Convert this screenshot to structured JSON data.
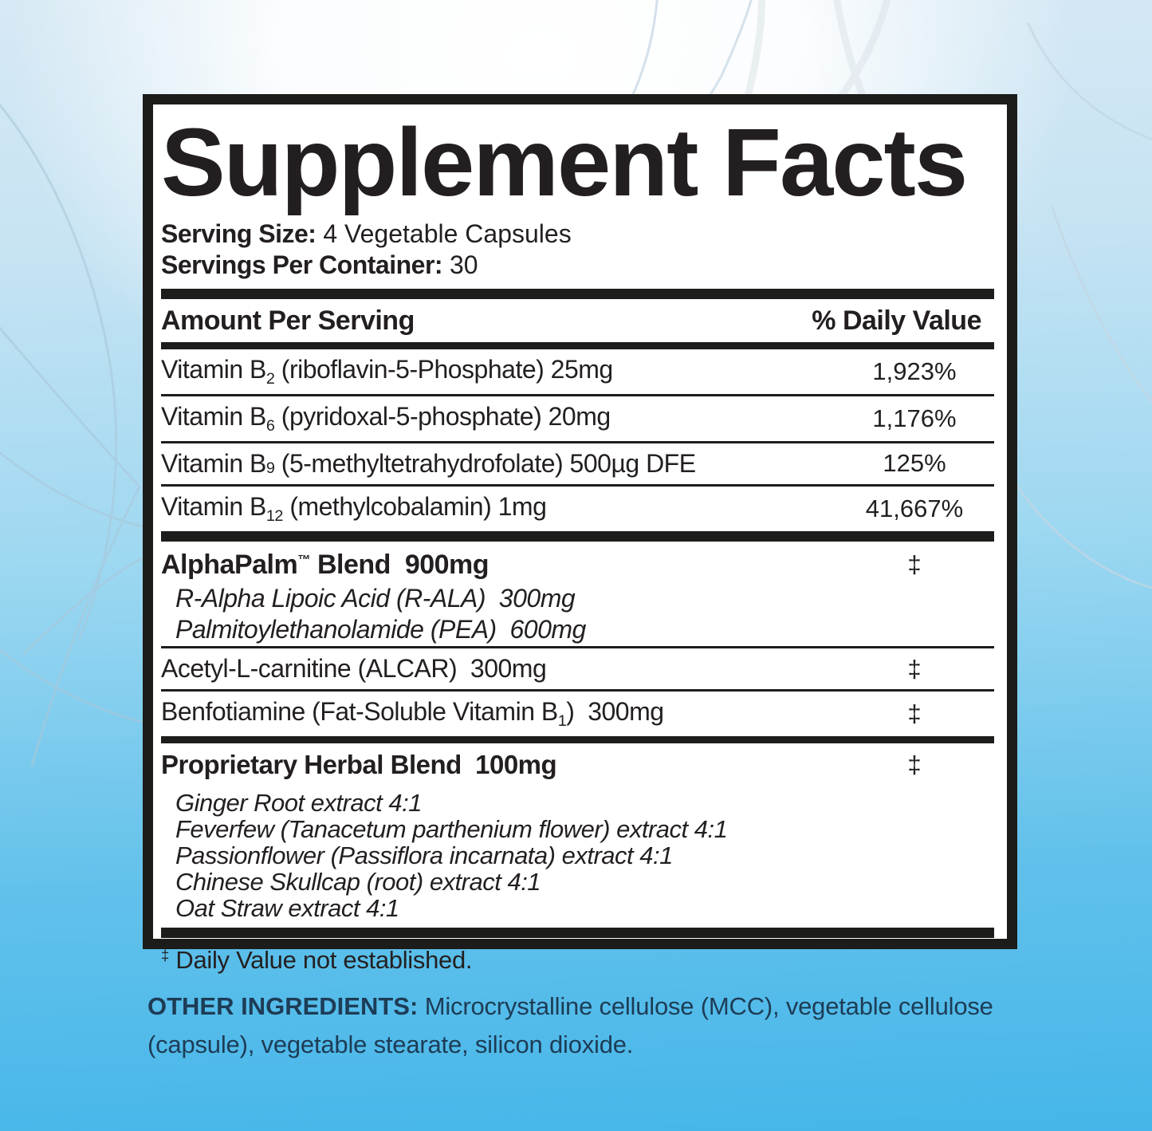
{
  "colors": {
    "background_top": "#ffffff",
    "background_bottom": "#45b6e9",
    "ink": "#231f20",
    "other_ingredients_ink": "#1d3c55"
  },
  "supplement_facts": {
    "title": "Supplement Facts",
    "serving_size": {
      "label": "Serving Size:",
      "value": " 4 Vegetable Capsules"
    },
    "servings_per_container": {
      "label": "Servings Per Container:",
      "value": " 30"
    },
    "columns": {
      "amount": "Amount Per Serving",
      "daily_value": "% Daily Value"
    },
    "rows": [
      {
        "style": "nutrient",
        "parts": [
          {
            "text": "Vitamin B"
          },
          {
            "sub": "2"
          },
          {
            "text": " (riboflavin-5-Phosphate) 25mg"
          }
        ],
        "dv": "1,923%",
        "sep_after": "thin"
      },
      {
        "style": "nutrient",
        "parts": [
          {
            "text": "Vitamin B"
          },
          {
            "sub": "6"
          },
          {
            "text": " (pyridoxal-5-phosphate) 20mg"
          }
        ],
        "dv": "1,176%",
        "sep_after": "thin"
      },
      {
        "style": "nutrient",
        "parts": [
          {
            "text": "Vitamin B"
          },
          {
            "sub": "9",
            "baseline": true
          },
          {
            "text": " (5-methyltetrahydrofolate) 500µg DFE"
          }
        ],
        "dv": "125%",
        "sep_after": "thin"
      },
      {
        "style": "nutrient",
        "parts": [
          {
            "text": "Vitamin B"
          },
          {
            "sub": "12"
          },
          {
            "text": " (methylcobalamin) 1mg"
          }
        ],
        "dv": "41,667%",
        "sep_after": "heavy"
      },
      {
        "style": "blend",
        "parts": [
          {
            "text": "AlphaPalm"
          },
          {
            "sup": "™"
          },
          {
            "text": " Blend  900mg"
          }
        ],
        "dv": "‡",
        "sep_after": "none"
      },
      {
        "style": "blend-item",
        "parts": [
          {
            "text": "R-Alpha Lipoic Acid (R-ALA)  300mg"
          }
        ],
        "dv": null,
        "sep_after": "none"
      },
      {
        "style": "blend-item",
        "parts": [
          {
            "text": "Palmitoylethanolamide (PEA)  600mg"
          }
        ],
        "dv": null,
        "sep_after": "thin"
      },
      {
        "style": "nutrient",
        "parts": [
          {
            "text": "Acetyl-L-carnitine (ALCAR)  300mg"
          }
        ],
        "dv": "‡",
        "sep_after": "thin"
      },
      {
        "style": "nutrient",
        "parts": [
          {
            "text": "Benfotiamine (Fat-Soluble Vitamin B"
          },
          {
            "sub": "1"
          },
          {
            "text": ")  300mg"
          }
        ],
        "dv": "‡",
        "sep_after": "medium"
      },
      {
        "style": "herb-header",
        "parts": [
          {
            "text": "Proprietary Herbal Blend  100mg"
          }
        ],
        "dv": "‡",
        "sep_after": "gap"
      },
      {
        "style": "herb-item",
        "parts": [
          {
            "text": "Ginger Root extract 4:1"
          }
        ],
        "dv": null,
        "sep_after": "none"
      },
      {
        "style": "herb-item",
        "parts": [
          {
            "text": "Feverfew (Tanacetum parthenium flower) extract 4:1"
          }
        ],
        "dv": null,
        "sep_after": "none"
      },
      {
        "style": "herb-item",
        "parts": [
          {
            "text": "Passionflower (Passiflora incarnata) extract 4:1"
          }
        ],
        "dv": null,
        "sep_after": "none"
      },
      {
        "style": "herb-item",
        "parts": [
          {
            "text": "Chinese Skullcap (root) extract 4:1"
          }
        ],
        "dv": null,
        "sep_after": "none"
      },
      {
        "style": "herb-item",
        "parts": [
          {
            "text": "Oat Straw extract 4:1"
          }
        ],
        "dv": null,
        "sep_after": "footgap"
      }
    ],
    "footnote": {
      "symbol": "‡",
      "text": " Daily Value not established."
    }
  },
  "other_ingredients": {
    "label": "OTHER INGREDIENTS:",
    "text": " Microcrystalline cellulose (MCC), vegetable cellulose (capsule), vegetable stearate, silicon dioxide."
  }
}
